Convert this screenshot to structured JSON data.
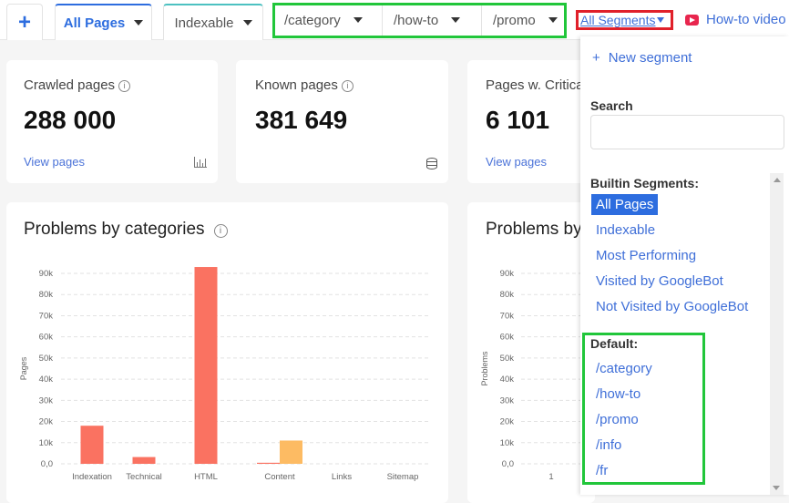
{
  "tabs": {
    "add_icon": "plus-icon",
    "items": [
      {
        "label": "All Pages",
        "active": true
      },
      {
        "label": "Indexable"
      }
    ],
    "segments": [
      "/category",
      "/how-to",
      "/promo"
    ],
    "all_segments": "All Segments",
    "howto": "How-to video",
    "highlight_colors": {
      "green": "#21c63a",
      "red": "#e0202a"
    }
  },
  "cards": [
    {
      "label": "Crawled pages",
      "value": "288 000",
      "link": "View pages",
      "icon": "bar-chart-icon"
    },
    {
      "label": "Known pages",
      "value": "381 649",
      "icon": "database-icon"
    },
    {
      "label": "Pages w. Critica",
      "value": "6 101",
      "link": "View pages"
    }
  ],
  "charts": [
    {
      "title": "Problems by categories"
    },
    {
      "title": "Problems by"
    }
  ],
  "chart_data": [
    {
      "type": "bar",
      "title": "Problems by categories",
      "ylabel": "Pages",
      "categories": [
        "Indexation",
        "Technical",
        "HTML",
        "Content",
        "Links",
        "Sitemap"
      ],
      "yticks": [
        "0,0",
        "10k",
        "20k",
        "30k",
        "40k",
        "50k",
        "60k",
        "70k",
        "80k",
        "90k"
      ],
      "ylim": [
        0,
        93000
      ],
      "grid": true,
      "series": [
        {
          "color": "#fa7261",
          "values": [
            18000,
            3200,
            93000,
            500,
            0,
            0
          ]
        },
        {
          "color": "#fdbb63",
          "values": [
            0,
            0,
            0,
            11000,
            0,
            0
          ]
        }
      ]
    },
    {
      "type": "bar",
      "title": "Problems by",
      "ylabel": "Problems",
      "categories": [
        "1"
      ],
      "yticks": [
        "0,0",
        "10k",
        "20k",
        "30k",
        "40k",
        "50k",
        "60k",
        "70k",
        "80k",
        "90k"
      ],
      "ylim": [
        0,
        93000
      ],
      "grid": true
    }
  ],
  "panel": {
    "new_segment": "New segment",
    "search_label": "Search",
    "search_value": "",
    "builtin_label": "Builtin Segments:",
    "builtin": [
      "All Pages",
      "Indexable",
      "Most Performing",
      "Visited by GoogleBot",
      "Not Visited by GoogleBot"
    ],
    "default_label": "Default:",
    "default": [
      "/category",
      "/how-to",
      "/promo",
      "/info",
      "/fr"
    ]
  }
}
